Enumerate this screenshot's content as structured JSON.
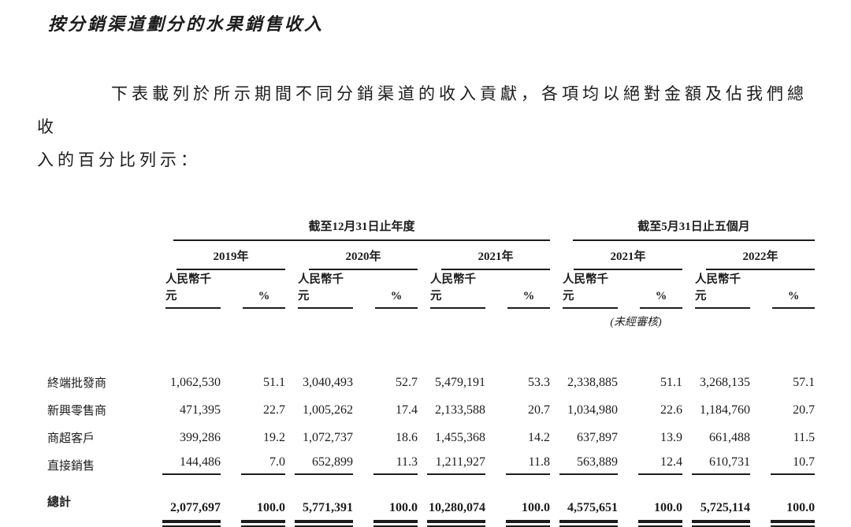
{
  "page": {
    "title": "按分銷渠道劃分的水果銷售收入",
    "intro_line1": "下表載列於所示期間不同分銷渠道的收入貢獻，各項均以絕對金額及佔我們總收",
    "intro_line2": "入的百分比列示："
  },
  "table": {
    "group_headers": [
      {
        "label": "截至12月31日止年度"
      },
      {
        "label": "截至5月31日止五個月"
      }
    ],
    "years": [
      "2019年",
      "2020年",
      "2021年",
      "2021年",
      "2022年"
    ],
    "subheaders": {
      "amount": "人民幣千元",
      "percent": "%"
    },
    "unaudited_note": "(未經審核)",
    "rows": [
      {
        "label": "終端批發商",
        "values": [
          "1,062,530",
          "51.1",
          "3,040,493",
          "52.7",
          "5,479,191",
          "53.3",
          "2,338,885",
          "51.1",
          "3,268,135",
          "57.1"
        ]
      },
      {
        "label": "新興零售商",
        "values": [
          "471,395",
          "22.7",
          "1,005,262",
          "17.4",
          "2,133,588",
          "20.7",
          "1,034,980",
          "22.6",
          "1,184,760",
          "20.7"
        ]
      },
      {
        "label": "商超客戶",
        "values": [
          "399,286",
          "19.2",
          "1,072,737",
          "18.6",
          "1,455,368",
          "14.2",
          "637,897",
          "13.9",
          "661,488",
          "11.5"
        ]
      },
      {
        "label": "直接銷售",
        "values": [
          "144,486",
          "7.0",
          "652,899",
          "11.3",
          "1,211,927",
          "11.8",
          "563,889",
          "12.4",
          "610,731",
          "10.7"
        ]
      }
    ],
    "total": {
      "label": "總計",
      "values": [
        "2,077,697",
        "100.0",
        "5,771,391",
        "100.0",
        "10,280,074",
        "100.0",
        "4,575,651",
        "100.0",
        "5,725,114",
        "100.0"
      ]
    },
    "text_color": "#1c1c1c"
  }
}
